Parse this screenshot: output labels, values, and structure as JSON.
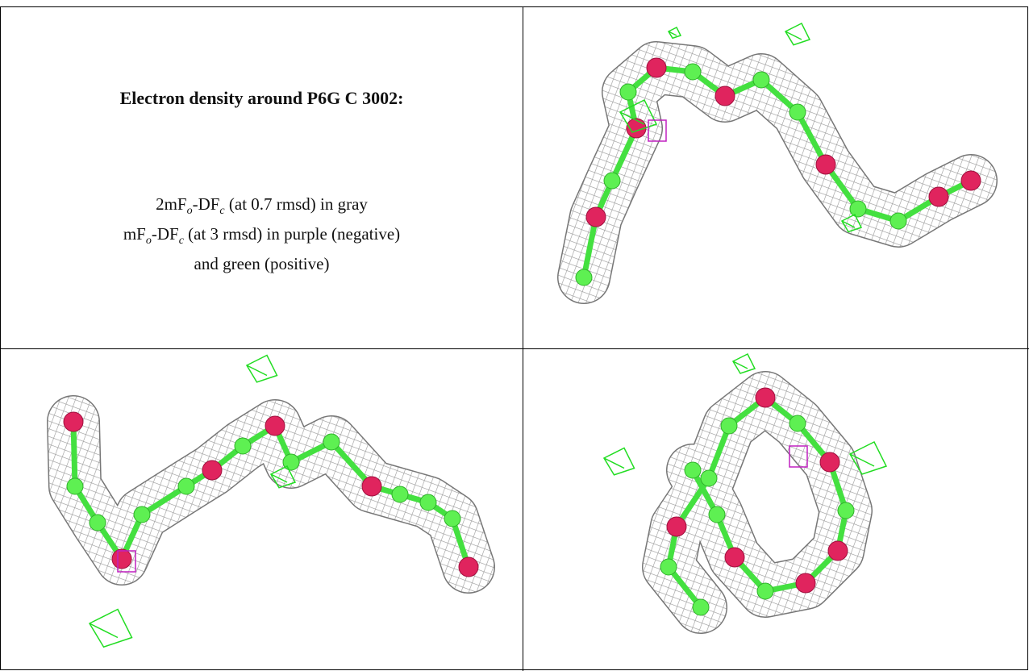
{
  "title": "Electron density around P6G C 3002:",
  "legend": [
    {
      "parts": [
        "2mF",
        "o",
        "-DF",
        "c",
        " (at 0.7 rmsd) in gray"
      ]
    },
    {
      "parts": [
        "mF",
        "o",
        "-DF",
        "c",
        " (at 3 rmsd) in purple (negative)"
      ]
    },
    {
      "parts": [
        "and green (positive)"
      ]
    }
  ]
}
